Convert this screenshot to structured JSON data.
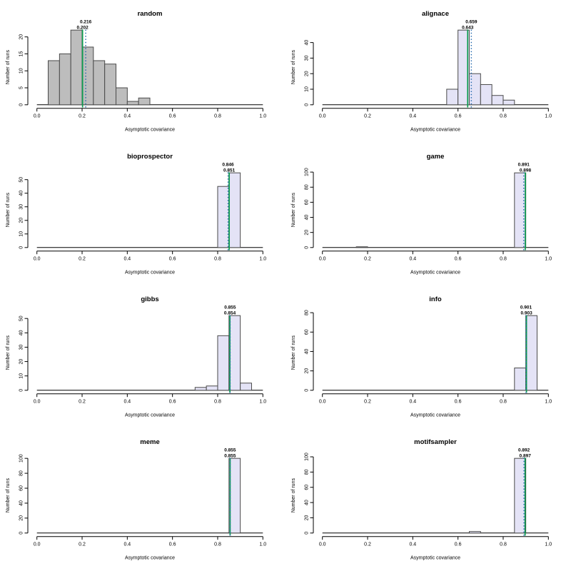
{
  "page": {
    "background": "#ffffff"
  },
  "colors": {
    "bar_gray_fill": "#BDBDBD",
    "bar_lavender_fill": "#E4E3F6",
    "bar_border": "#4A4A4A",
    "solid_line": "#0B9D4F",
    "dotted_line": "#2A6BAD",
    "axis": "#000000",
    "text": "#000000"
  },
  "chart_data": [
    {
      "type": "bar",
      "style": "histogram",
      "title": "random",
      "fill": "gray",
      "xlabel": "Asymptotic covariance",
      "ylabel": "Number of runs",
      "xlim": [
        0,
        1
      ],
      "bin_width": 0.05,
      "xticks": [
        0.0,
        0.2,
        0.4,
        0.6,
        0.8,
        1.0
      ],
      "xtick_labels": [
        "0.0",
        "0.2",
        "0.4",
        "0.6",
        "0.8",
        "1.0"
      ],
      "yticks": [
        0,
        5,
        10,
        15,
        20
      ],
      "ymax": 22,
      "bins": [
        {
          "x": 0.05,
          "count": 13
        },
        {
          "x": 0.1,
          "count": 15
        },
        {
          "x": 0.15,
          "count": 22
        },
        {
          "x": 0.2,
          "count": 17
        },
        {
          "x": 0.25,
          "count": 13
        },
        {
          "x": 0.3,
          "count": 12
        },
        {
          "x": 0.35,
          "count": 5
        },
        {
          "x": 0.4,
          "count": 1
        },
        {
          "x": 0.45,
          "count": 2
        }
      ],
      "dotted_line": {
        "value": 0.216,
        "label": "0.216"
      },
      "solid_line": {
        "value": 0.202,
        "label": "0.202"
      }
    },
    {
      "type": "bar",
      "style": "histogram",
      "title": "alignace",
      "fill": "lavender",
      "xlabel": "Asymptotic covariance",
      "ylabel": "Number of runs",
      "xlim": [
        0,
        1
      ],
      "bin_width": 0.05,
      "xticks": [
        0.0,
        0.2,
        0.4,
        0.6,
        0.8,
        1.0
      ],
      "xtick_labels": [
        "0.0",
        "0.2",
        "0.4",
        "0.6",
        "0.8",
        "1.0"
      ],
      "yticks": [
        0,
        10,
        20,
        30,
        40
      ],
      "ymax": 48,
      "bins": [
        {
          "x": 0.55,
          "count": 10
        },
        {
          "x": 0.6,
          "count": 48
        },
        {
          "x": 0.65,
          "count": 20
        },
        {
          "x": 0.7,
          "count": 13
        },
        {
          "x": 0.75,
          "count": 6
        },
        {
          "x": 0.8,
          "count": 3
        }
      ],
      "dotted_line": {
        "value": 0.659,
        "label": "0.659"
      },
      "solid_line": {
        "value": 0.643,
        "label": "0.643"
      }
    },
    {
      "type": "bar",
      "style": "histogram",
      "title": "bioprospector",
      "fill": "lavender",
      "xlabel": "Asymptotic covariance",
      "ylabel": "Number of runs",
      "xlim": [
        0,
        1
      ],
      "bin_width": 0.05,
      "xticks": [
        0.0,
        0.2,
        0.4,
        0.6,
        0.8,
        1.0
      ],
      "xtick_labels": [
        "0.0",
        "0.2",
        "0.4",
        "0.6",
        "0.8",
        "1.0"
      ],
      "yticks": [
        0,
        10,
        20,
        30,
        40,
        50
      ],
      "ymax": 55,
      "bins": [
        {
          "x": 0.8,
          "count": 45
        },
        {
          "x": 0.85,
          "count": 55
        }
      ],
      "dotted_line": {
        "value": 0.846,
        "label": "0.846"
      },
      "solid_line": {
        "value": 0.851,
        "label": "0.851"
      }
    },
    {
      "type": "bar",
      "style": "histogram",
      "title": "game",
      "fill": "lavender",
      "xlabel": "Asymptotic covariance",
      "ylabel": "Number of runs",
      "xlim": [
        0,
        1
      ],
      "bin_width": 0.05,
      "xticks": [
        0.0,
        0.2,
        0.4,
        0.6,
        0.8,
        1.0
      ],
      "xtick_labels": [
        "0.0",
        "0.2",
        "0.4",
        "0.6",
        "0.8",
        "1.0"
      ],
      "yticks": [
        0,
        20,
        40,
        60,
        80,
        100
      ],
      "ymax": 99,
      "bins": [
        {
          "x": 0.15,
          "count": 1
        },
        {
          "x": 0.85,
          "count": 99
        }
      ],
      "dotted_line": {
        "value": 0.891,
        "label": "0.891"
      },
      "solid_line": {
        "value": 0.898,
        "label": "0.898"
      }
    },
    {
      "type": "bar",
      "style": "histogram",
      "title": "gibbs",
      "fill": "lavender",
      "xlabel": "Asymptotic covariance",
      "ylabel": "Number of runs",
      "xlim": [
        0,
        1
      ],
      "bin_width": 0.05,
      "xticks": [
        0.0,
        0.2,
        0.4,
        0.6,
        0.8,
        1.0
      ],
      "xtick_labels": [
        "0.0",
        "0.2",
        "0.4",
        "0.6",
        "0.8",
        "1.0"
      ],
      "yticks": [
        0,
        10,
        20,
        30,
        40,
        50
      ],
      "ymax": 52,
      "bins": [
        {
          "x": 0.7,
          "count": 2
        },
        {
          "x": 0.75,
          "count": 3
        },
        {
          "x": 0.8,
          "count": 38
        },
        {
          "x": 0.85,
          "count": 52
        },
        {
          "x": 0.9,
          "count": 5
        }
      ],
      "dotted_line": {
        "value": 0.855,
        "label": "0.855"
      },
      "solid_line": {
        "value": 0.854,
        "label": "0.854"
      }
    },
    {
      "type": "bar",
      "style": "histogram",
      "title": "info",
      "fill": "lavender",
      "xlabel": "Asymptotic covariance",
      "ylabel": "Number of runs",
      "xlim": [
        0,
        1
      ],
      "bin_width": 0.05,
      "xticks": [
        0.0,
        0.2,
        0.4,
        0.6,
        0.8,
        1.0
      ],
      "xtick_labels": [
        "0.0",
        "0.2",
        "0.4",
        "0.6",
        "0.8",
        "1.0"
      ],
      "yticks": [
        0,
        20,
        40,
        60,
        80
      ],
      "ymax": 77,
      "bins": [
        {
          "x": 0.85,
          "count": 23
        },
        {
          "x": 0.9,
          "count": 77
        }
      ],
      "dotted_line": {
        "value": 0.901,
        "label": "0.901"
      },
      "solid_line": {
        "value": 0.903,
        "label": "0.903"
      }
    },
    {
      "type": "bar",
      "style": "histogram",
      "title": "meme",
      "fill": "lavender",
      "xlabel": "Asymptotic covariance",
      "ylabel": "Number of runs",
      "xlim": [
        0,
        1
      ],
      "bin_width": 0.05,
      "xticks": [
        0.0,
        0.2,
        0.4,
        0.6,
        0.8,
        1.0
      ],
      "xtick_labels": [
        "0.0",
        "0.2",
        "0.4",
        "0.6",
        "0.8",
        "1.0"
      ],
      "yticks": [
        0,
        20,
        40,
        60,
        80,
        100
      ],
      "ymax": 100,
      "bins": [
        {
          "x": 0.85,
          "count": 100
        }
      ],
      "dotted_line": {
        "value": 0.855,
        "label": "0.855"
      },
      "solid_line": {
        "value": 0.855,
        "label": "0.855"
      }
    },
    {
      "type": "bar",
      "style": "histogram",
      "title": "motifsampler",
      "fill": "lavender",
      "xlabel": "Asymptotic covariance",
      "ylabel": "Number of runs",
      "xlim": [
        0,
        1
      ],
      "bin_width": 0.05,
      "xticks": [
        0.0,
        0.2,
        0.4,
        0.6,
        0.8,
        1.0
      ],
      "xtick_labels": [
        "0.0",
        "0.2",
        "0.4",
        "0.6",
        "0.8",
        "1.0"
      ],
      "yticks": [
        0,
        20,
        40,
        60,
        80,
        100
      ],
      "ymax": 98,
      "bins": [
        {
          "x": 0.65,
          "count": 2
        },
        {
          "x": 0.85,
          "count": 98
        }
      ],
      "dotted_line": {
        "value": 0.892,
        "label": "0.892"
      },
      "solid_line": {
        "value": 0.897,
        "label": "0.897"
      }
    }
  ]
}
